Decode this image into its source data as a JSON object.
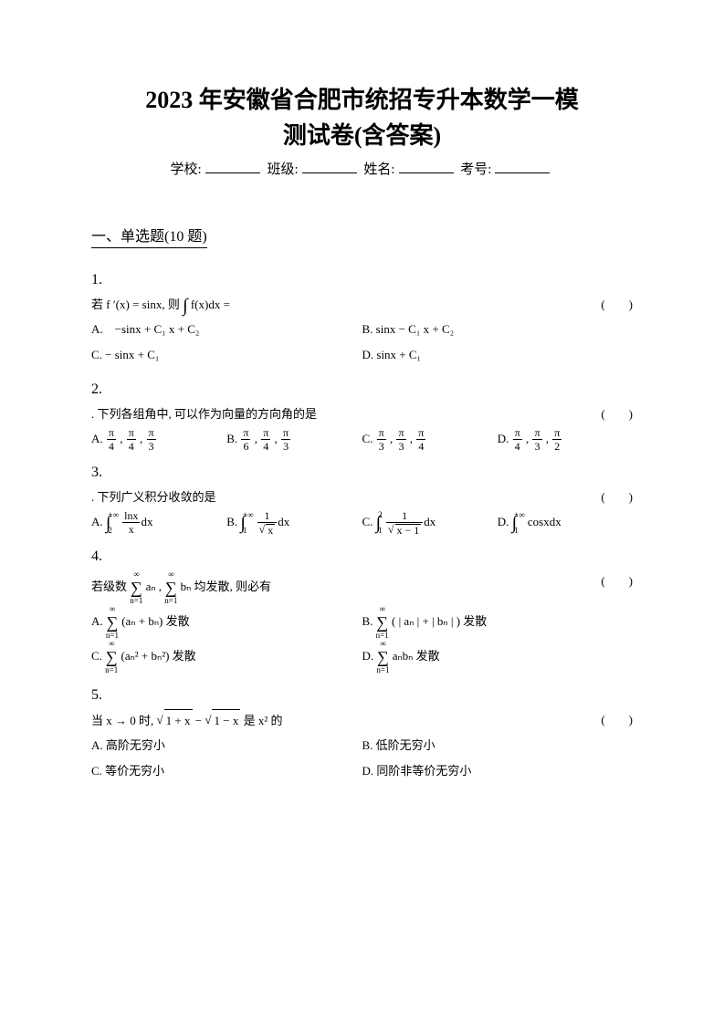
{
  "title_line1": "2023 年安徽省合肥市统招专升本数学一模",
  "title_line2": "测试卷(含答案)",
  "info": {
    "school_label": "学校:",
    "class_label": "班级:",
    "name_label": "姓名:",
    "examno_label": "考号:"
  },
  "section_title": "一、单选题(10 题)",
  "paren_text": "(　　)",
  "questions": {
    "q1": {
      "num": "1.",
      "stem_prefix": "若 f ′(x) = sinx, 则",
      "stem_int": "∫",
      "stem_suffix": " f(x)dx =",
      "optA": "A. −sinx + C₁ x + C₂",
      "optB": "B. sinx − C₁ x + C₂",
      "optC": "C. − sinx + C₁",
      "optD": "D. sinx + C₁"
    },
    "q2": {
      "num": "2.",
      "stem": ". 下列各组角中, 可以作为向量的方向角的是",
      "A_label": "A. ",
      "B_label": "B. ",
      "C_label": "C. ",
      "D_label": "D. ",
      "A_parts": [
        "π",
        "4",
        "π",
        "4",
        "π",
        "3"
      ],
      "B_parts": [
        "π",
        "6",
        "π",
        "4",
        "π",
        "3"
      ],
      "C_parts": [
        "π",
        "3",
        "π",
        "3",
        "π",
        "4"
      ],
      "D_parts": [
        "π",
        "4",
        "π",
        "3",
        "π",
        "2"
      ]
    },
    "q3": {
      "num": "3.",
      "stem": ". 下列广义积分收敛的是",
      "A_label": "A. ",
      "B_label": "B. ",
      "C_label": "C. ",
      "D_label": "D. ",
      "A_upper": "+∞",
      "A_lower": "2",
      "A_num": "lnx",
      "A_den": "x",
      "A_dx": "dx",
      "B_upper": "+∞",
      "B_lower": "1",
      "B_num": "1",
      "B_den_rad": "x",
      "B_dx": "dx",
      "C_upper": "2",
      "C_lower": "1",
      "C_num": "1",
      "C_den_rad": "x − 1",
      "C_dx": "dx",
      "D_upper": "+∞",
      "D_lower": "1",
      "D_body": "cosxdx"
    },
    "q4": {
      "num": "4.",
      "stem_prefix": "若级数 ",
      "series1_up": "∞",
      "series1_low": "n=1",
      "series1_body": "aₙ ,",
      "series2_up": "∞",
      "series2_low": "n=1",
      "series2_body": "bₙ 均发散, 则必有",
      "A_label": "A. ",
      "A_up": "∞",
      "A_low": "n=1",
      "A_body": "(aₙ + bₙ) 发散",
      "B_label": "B. ",
      "B_up": "∞",
      "B_low": "n=1",
      "B_body": "( | aₙ | + | bₙ | ) 发散",
      "C_label": "C. ",
      "C_up": "∞",
      "C_low": "n=1",
      "C_body": "(aₙ² + bₙ²) 发散",
      "D_label": "D. ",
      "D_up": "∞",
      "D_low": "n=1",
      "D_body": "aₙbₙ 发散"
    },
    "q5": {
      "num": "5.",
      "stem_prefix": "当 x → 0 时, ",
      "rad1": "1 + x",
      "mid": " − ",
      "rad2": "1 − x",
      "stem_suffix": " 是 x² 的",
      "optA": "A. 高阶无穷小",
      "optB": "B. 低阶无穷小",
      "optC": "C. 等价无穷小",
      "optD": "D. 同阶非等价无穷小"
    }
  }
}
